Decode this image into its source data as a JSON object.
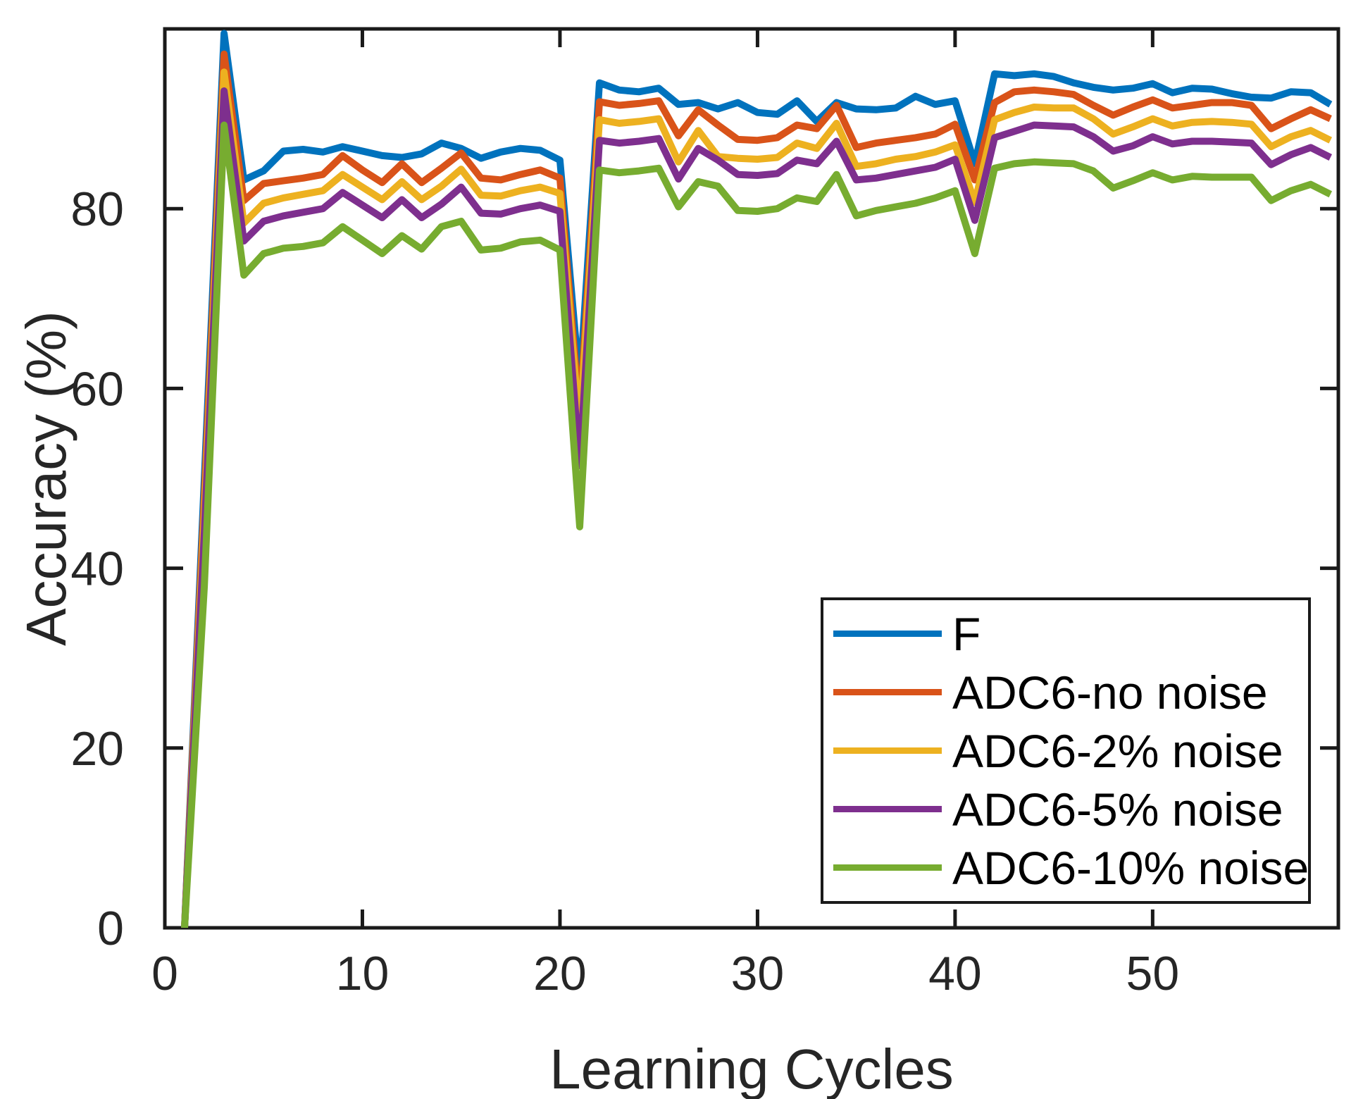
{
  "figure": {
    "title": "",
    "xlabel": "Learning Cycles",
    "ylabel": "Accuracy (%)"
  },
  "colors": {
    "background": "#ffffff",
    "spine": "#1a1a1a",
    "text": "#262626"
  },
  "chart_data": {
    "type": "line",
    "title": "",
    "xlabel": "Learning Cycles",
    "ylabel": "Accuracy (%)",
    "xlim": [
      0,
      59.4
    ],
    "ylim": [
      0,
      100
    ],
    "xticks": [
      0,
      10,
      20,
      30,
      40,
      50
    ],
    "yticks": [
      0,
      20,
      40,
      60,
      80
    ],
    "grid": false,
    "legend_position": "lower-right-inside",
    "x": [
      1,
      2,
      3,
      4,
      5,
      6,
      7,
      8,
      9,
      10,
      11,
      12,
      13,
      14,
      15,
      16,
      17,
      18,
      19,
      20,
      21,
      22,
      23,
      24,
      25,
      26,
      27,
      28,
      29,
      30,
      31,
      32,
      33,
      34,
      35,
      36,
      37,
      38,
      39,
      40,
      41,
      42,
      43,
      44,
      45,
      46,
      47,
      48,
      49,
      50,
      51,
      52,
      53,
      54,
      55,
      56,
      57,
      58,
      59
    ],
    "series": [
      {
        "name": "F",
        "color": "#0072BD",
        "values": [
          0,
          50,
          99.5,
          83.2,
          84.2,
          86.4,
          86.6,
          86.3,
          86.9,
          86.4,
          85.9,
          85.7,
          86.1,
          87.3,
          86.7,
          85.6,
          86.3,
          86.7,
          86.5,
          85.4,
          60.4,
          94.0,
          93.2,
          93.0,
          93.4,
          91.6,
          91.8,
          91.1,
          91.8,
          90.7,
          90.5,
          92.0,
          89.7,
          91.8,
          91.1,
          91.0,
          91.2,
          92.5,
          91.6,
          92.0,
          85.0,
          95.0,
          94.8,
          95.0,
          94.7,
          94.0,
          93.5,
          93.2,
          93.4,
          93.9,
          92.9,
          93.4,
          93.3,
          92.8,
          92.4,
          92.3,
          93.0,
          92.9,
          91.6
        ]
      },
      {
        "name": "ADC6-no noise",
        "color": "#D95319",
        "values": [
          0,
          48,
          97.2,
          80.9,
          82.8,
          83.1,
          83.4,
          83.8,
          85.9,
          84.3,
          82.9,
          85.0,
          82.9,
          84.5,
          86.2,
          83.4,
          83.2,
          83.8,
          84.3,
          83.4,
          57.0,
          91.9,
          91.5,
          91.7,
          92.0,
          88.1,
          91.0,
          89.3,
          87.7,
          87.6,
          87.9,
          89.3,
          88.9,
          91.5,
          86.8,
          87.3,
          87.6,
          87.9,
          88.3,
          89.4,
          83.2,
          91.8,
          93.0,
          93.2,
          93.0,
          92.7,
          91.5,
          90.4,
          91.3,
          92.1,
          91.2,
          91.5,
          91.8,
          91.8,
          91.5,
          88.9,
          90.0,
          91.0,
          90.0
        ]
      },
      {
        "name": "ADC6-2% noise",
        "color": "#EDB120",
        "values": [
          0,
          46,
          95.2,
          78.4,
          80.6,
          81.2,
          81.6,
          82.0,
          83.8,
          82.4,
          81.0,
          83.0,
          81.0,
          82.5,
          84.4,
          81.5,
          81.4,
          82.0,
          82.4,
          81.7,
          55.5,
          89.9,
          89.5,
          89.7,
          90.0,
          85.2,
          88.7,
          85.8,
          85.6,
          85.5,
          85.7,
          87.3,
          86.7,
          89.5,
          84.7,
          85.0,
          85.5,
          85.8,
          86.3,
          87.1,
          80.7,
          89.9,
          90.7,
          91.3,
          91.2,
          91.2,
          90.0,
          88.3,
          89.1,
          90.0,
          89.2,
          89.6,
          89.7,
          89.6,
          89.4,
          86.9,
          88.0,
          88.7,
          87.6
        ]
      },
      {
        "name": "ADC6-5% noise",
        "color": "#7E2F8E",
        "values": [
          0,
          44,
          93.1,
          76.4,
          78.6,
          79.2,
          79.6,
          80.0,
          81.8,
          80.4,
          79.0,
          81.0,
          79.0,
          80.5,
          82.4,
          79.5,
          79.4,
          80.0,
          80.4,
          79.7,
          51.4,
          87.6,
          87.3,
          87.5,
          87.8,
          83.3,
          86.7,
          85.4,
          83.8,
          83.7,
          83.9,
          85.4,
          85.0,
          87.5,
          83.2,
          83.4,
          83.8,
          84.2,
          84.6,
          85.5,
          78.7,
          87.9,
          88.6,
          89.3,
          89.2,
          89.1,
          88.0,
          86.4,
          87.0,
          88.0,
          87.2,
          87.5,
          87.5,
          87.4,
          87.3,
          84.9,
          86.0,
          86.8,
          85.7
        ]
      },
      {
        "name": "ADC6-10% noise",
        "color": "#77AC30",
        "values": [
          0,
          38,
          89.3,
          72.6,
          75.0,
          75.6,
          75.8,
          76.2,
          78.0,
          76.5,
          75.0,
          77.0,
          75.5,
          78.0,
          78.6,
          75.4,
          75.6,
          76.3,
          76.5,
          75.4,
          44.6,
          84.3,
          84.0,
          84.2,
          84.5,
          80.2,
          83.0,
          82.5,
          79.8,
          79.7,
          80.0,
          81.2,
          80.8,
          83.8,
          79.2,
          79.8,
          80.2,
          80.6,
          81.2,
          82.0,
          75.0,
          84.5,
          85.0,
          85.2,
          85.1,
          85.0,
          84.2,
          82.3,
          83.1,
          84.0,
          83.2,
          83.6,
          83.5,
          83.5,
          83.5,
          80.9,
          82.0,
          82.7,
          81.6
        ]
      }
    ]
  }
}
